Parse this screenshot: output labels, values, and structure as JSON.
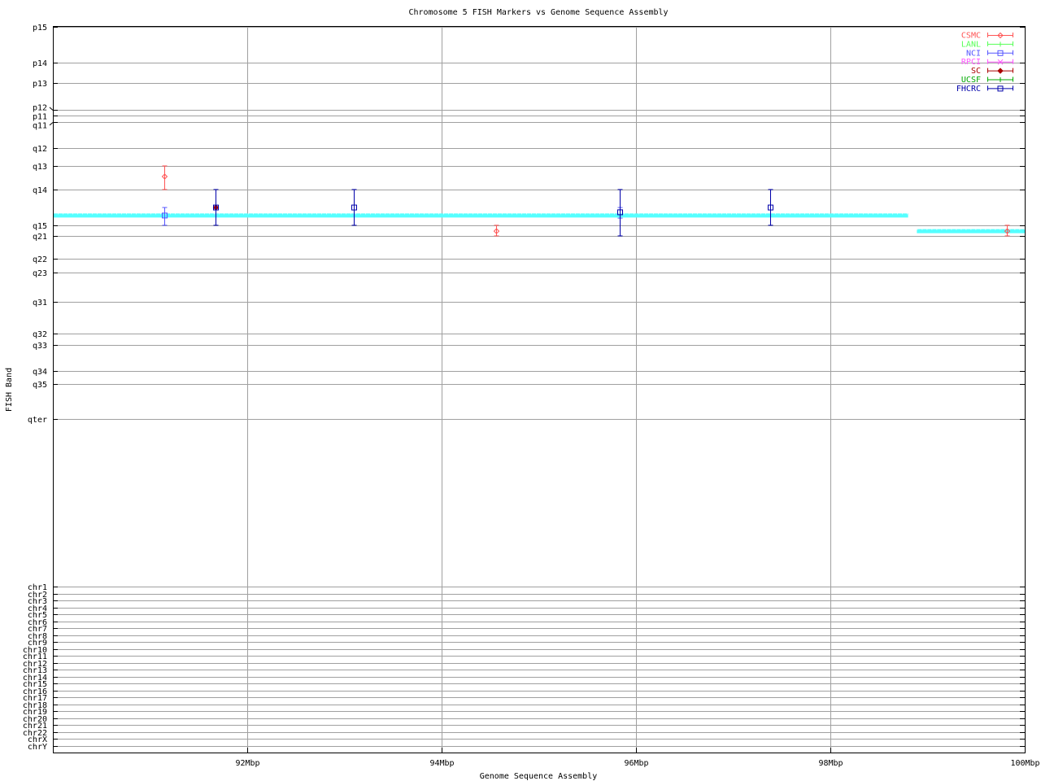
{
  "chart_data": {
    "type": "scatter",
    "title": "Chromosome 5 FISH Markers vs Genome Sequence Assembly",
    "xlabel": "Genome Sequence Assembly",
    "ylabel": "FISH Band",
    "xlim": [
      90,
      100
    ],
    "x_ticks": [
      {
        "value": 92,
        "label": "92Mbp"
      },
      {
        "value": 94,
        "label": "94Mbp"
      },
      {
        "value": 96,
        "label": "96Mbp"
      },
      {
        "value": 98,
        "label": "98Mbp"
      },
      {
        "value": 100,
        "label": "100Mbp"
      }
    ],
    "ylim": [
      0,
      335
    ],
    "y_inverted": true,
    "grid": true,
    "legend_position": "top-right",
    "y_ticks": [
      {
        "value": 0,
        "label": "p15"
      },
      {
        "value": 16.5,
        "label": "p14"
      },
      {
        "value": 25.9,
        "label": "p13"
      },
      {
        "value": 38.3,
        "label": "p12"
      },
      {
        "value": 40.9,
        "label": "p11"
      },
      {
        "value": 43.9,
        "label": "q11"
      },
      {
        "value": 55.9,
        "label": "q12"
      },
      {
        "value": 64.2,
        "label": "q13"
      },
      {
        "value": 75.1,
        "label": "q14"
      },
      {
        "value": 91.6,
        "label": "q15"
      },
      {
        "value": 96.5,
        "label": "q21"
      },
      {
        "value": 107.0,
        "label": "q22"
      },
      {
        "value": 113.4,
        "label": "q23"
      },
      {
        "value": 126.9,
        "label": "q31"
      },
      {
        "value": 141.6,
        "label": "q32"
      },
      {
        "value": 146.8,
        "label": "q33"
      },
      {
        "value": 158.8,
        "label": "q34"
      },
      {
        "value": 164.8,
        "label": "q35"
      },
      {
        "value": 181.0,
        "label": "qter"
      },
      {
        "value": 258.4,
        "label": "chr1"
      },
      {
        "value": 261.6,
        "label": "chr2"
      },
      {
        "value": 264.8,
        "label": "chr3"
      },
      {
        "value": 268.0,
        "label": "chr4"
      },
      {
        "value": 271.2,
        "label": "chr5"
      },
      {
        "value": 274.4,
        "label": "chr6"
      },
      {
        "value": 277.6,
        "label": "chr7"
      },
      {
        "value": 280.8,
        "label": "chr8"
      },
      {
        "value": 284.0,
        "label": "chr9"
      },
      {
        "value": 287.2,
        "label": "chr10"
      },
      {
        "value": 290.4,
        "label": "chr11"
      },
      {
        "value": 293.6,
        "label": "chr12"
      },
      {
        "value": 296.8,
        "label": "chr13"
      },
      {
        "value": 300.0,
        "label": "chr14"
      },
      {
        "value": 303.2,
        "label": "chr15"
      },
      {
        "value": 306.4,
        "label": "chr16"
      },
      {
        "value": 309.6,
        "label": "chr17"
      },
      {
        "value": 312.8,
        "label": "chr18"
      },
      {
        "value": 316.0,
        "label": "chr19"
      },
      {
        "value": 319.2,
        "label": "chr20"
      },
      {
        "value": 322.4,
        "label": "chr21"
      },
      {
        "value": 325.6,
        "label": "chr22"
      },
      {
        "value": 328.8,
        "label": "chrX"
      },
      {
        "value": 332.0,
        "label": "chrY"
      }
    ],
    "assembly_line": {
      "color": "#55ffff",
      "segments": [
        {
          "x": [
            90,
            98.8
          ],
          "y": 87.1
        },
        {
          "x": [
            98.89,
            100
          ],
          "y": 94.3
        }
      ]
    },
    "series": [
      {
        "name": "CSMC",
        "color": "#ff5555",
        "marker": "diamond",
        "points": [
          {
            "x": 91.15,
            "y": 69.1,
            "ylow": 64.2,
            "yhigh": 75.1
          },
          {
            "x": 94.56,
            "y": 94.3,
            "ylow": 91.6,
            "yhigh": 96.5
          },
          {
            "x": 99.82,
            "y": 94.3,
            "ylow": 91.6,
            "yhigh": 96.5
          }
        ]
      },
      {
        "name": "LANL",
        "color": "#55ff55",
        "marker": "plus",
        "points": []
      },
      {
        "name": "NCI",
        "color": "#5555ff",
        "marker": "square",
        "points": [
          {
            "x": 91.15,
            "y": 87.1,
            "ylow": 83.4,
            "yhigh": 91.6
          },
          {
            "x": 95.83,
            "y": 85.6,
            "ylow": 83.4,
            "yhigh": 88.3
          }
        ]
      },
      {
        "name": "RPCI",
        "color": "#ff55ff",
        "marker": "cross",
        "points": []
      },
      {
        "name": "SC",
        "color": "#aa0000",
        "marker": "diamond",
        "points": [
          {
            "x": 91.67,
            "y": 83.4,
            "ylow": 83.4,
            "yhigh": 83.4
          }
        ]
      },
      {
        "name": "UCSF",
        "color": "#00aa00",
        "marker": "plus",
        "points": []
      },
      {
        "name": "FHCRC",
        "color": "#0000aa",
        "marker": "square",
        "points": [
          {
            "x": 91.67,
            "y": 83.4,
            "ylow": 75.1,
            "yhigh": 91.6
          },
          {
            "x": 93.1,
            "y": 83.4,
            "ylow": 75.1,
            "yhigh": 91.6
          },
          {
            "x": 95.83,
            "y": 85.6,
            "ylow": 75.1,
            "yhigh": 96.5
          },
          {
            "x": 97.38,
            "y": 83.4,
            "ylow": 75.1,
            "yhigh": 91.6
          }
        ]
      }
    ]
  }
}
